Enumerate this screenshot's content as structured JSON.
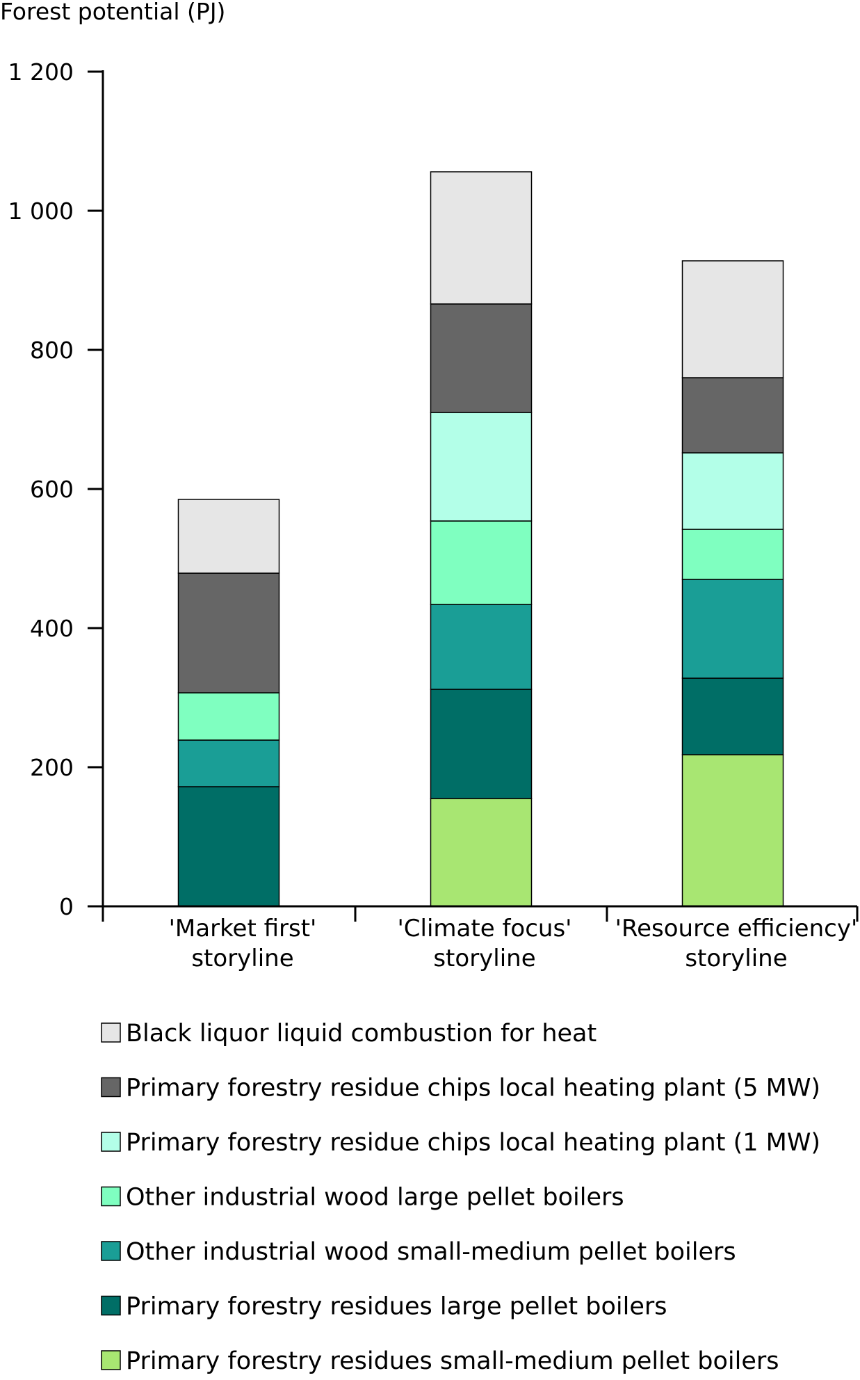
{
  "chart_data": {
    "type": "bar",
    "stacked": true,
    "ylabel": "Forest potential (PJ)",
    "xlabel": "",
    "ylim": [
      0,
      1200
    ],
    "yticks": [
      0,
      200,
      400,
      600,
      800,
      1000,
      1200
    ],
    "ytick_labels": [
      "0",
      "200",
      "400",
      "600",
      "800",
      "1 000",
      "1 200"
    ],
    "categories": [
      [
        "'Market first'",
        "storyline"
      ],
      [
        "'Climate focus'",
        "storyline"
      ],
      [
        "'Resource efficiency'",
        "storyline"
      ]
    ],
    "legend_position": "bottom",
    "series": [
      {
        "name": "Primary forestry residues small-medium pellet boilers",
        "color": "#a8e672",
        "values": [
          0,
          155,
          218
        ]
      },
      {
        "name": "Primary forestry residues large pellet boilers",
        "color": "#006e66",
        "values": [
          172,
          157,
          110
        ]
      },
      {
        "name": "Other industrial wood small-medium pellet boilers",
        "color": "#1a9e96",
        "values": [
          67,
          122,
          142
        ]
      },
      {
        "name": "Other industrial wood large pellet boilers",
        "color": "#7fffc0",
        "values": [
          68,
          120,
          72
        ]
      },
      {
        "name": "Primary forestry residue chips local heating plant (1 MW)",
        "color": "#b3ffe8",
        "values": [
          0,
          156,
          110
        ]
      },
      {
        "name": "Primary forestry residue chips local heating plant (5 MW)",
        "color": "#666666",
        "values": [
          172,
          156,
          108
        ]
      },
      {
        "name": "Black liquor liquid combustion for heat",
        "color": "#e6e6e6",
        "values": [
          106,
          190,
          168
        ]
      }
    ]
  }
}
